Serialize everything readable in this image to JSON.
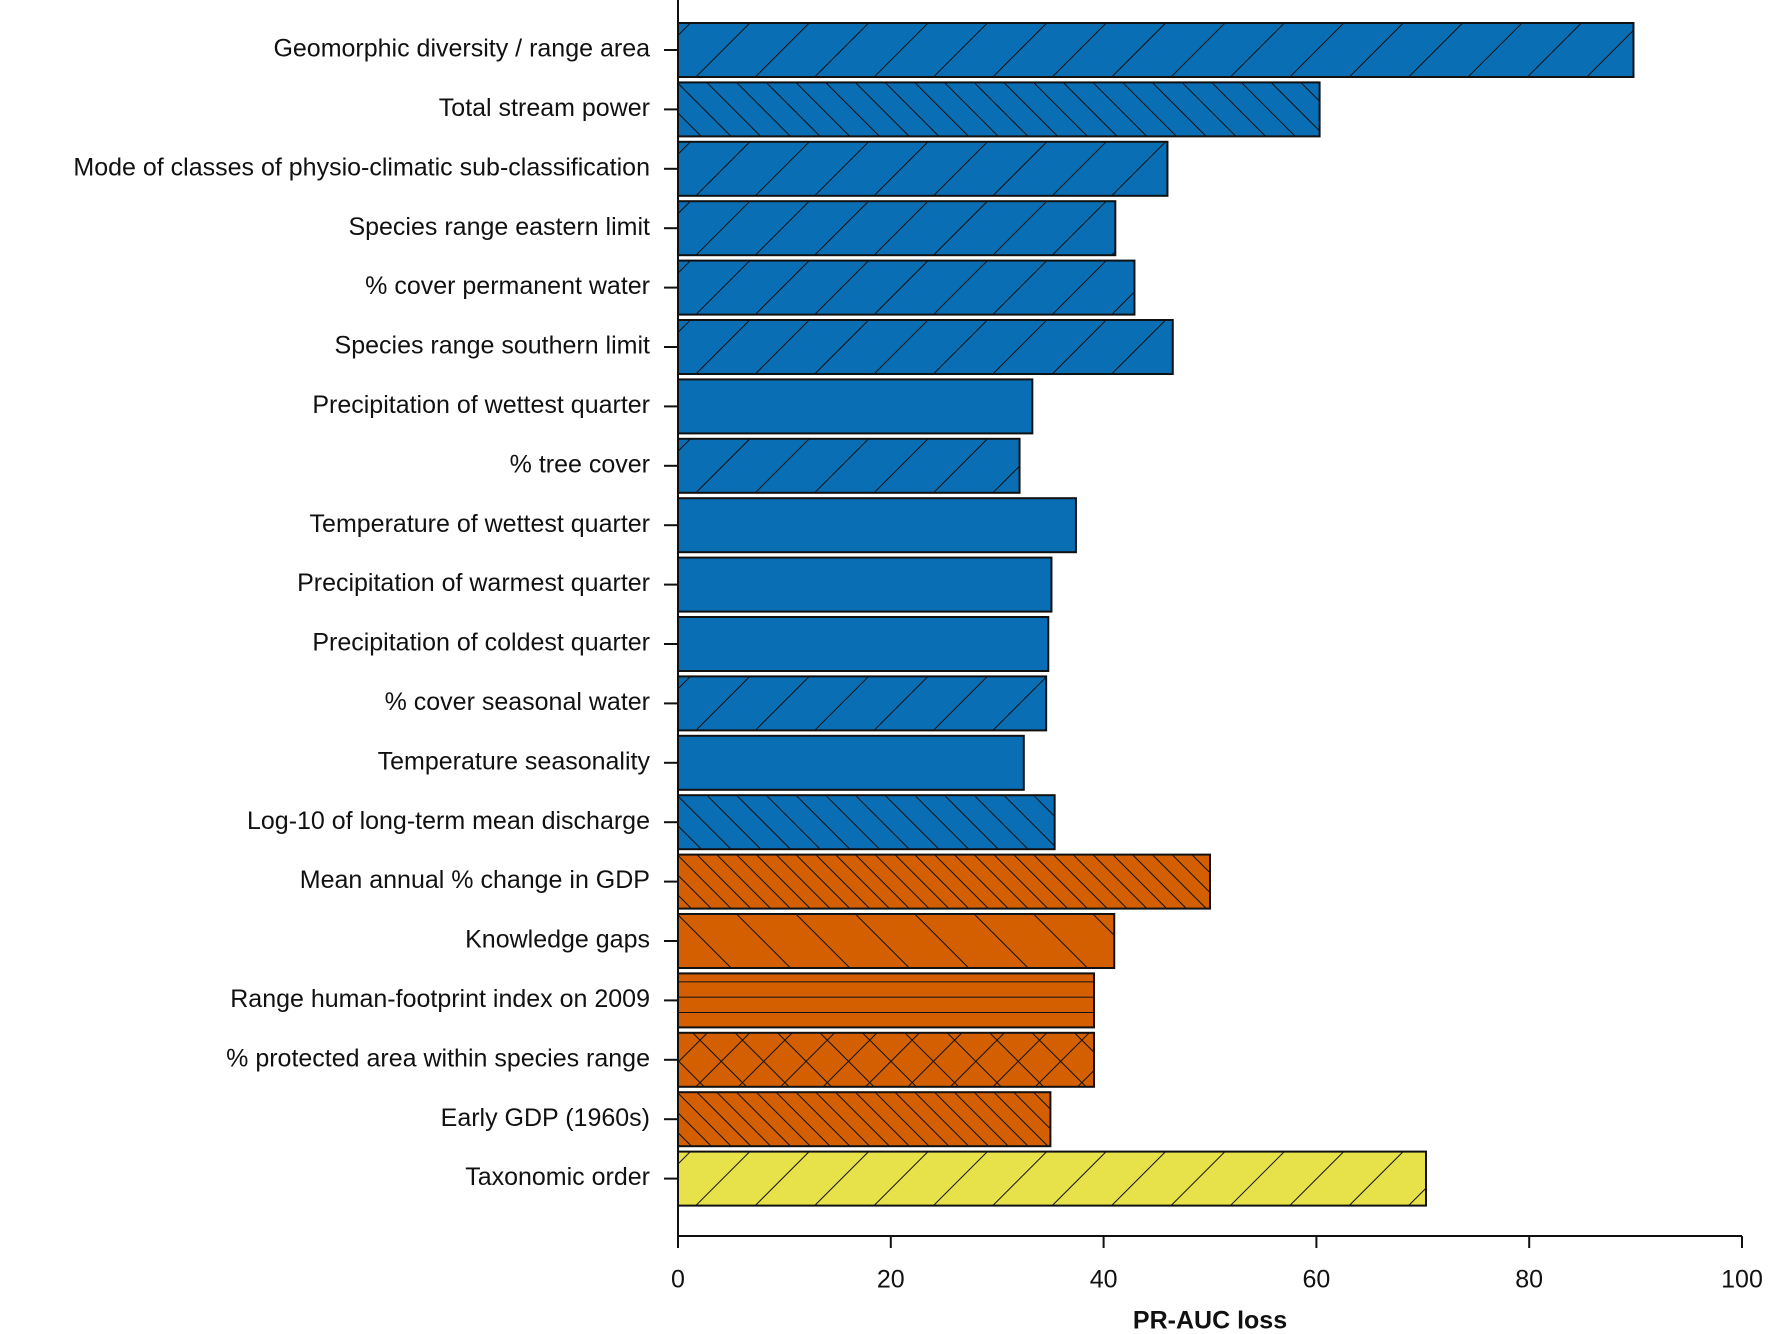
{
  "chart_data": {
    "type": "barh",
    "categories": [
      "Geomorphic diversity / range area",
      "Total stream power",
      "Mode of classes of physio-climatic sub-classification",
      "Species range eastern limit",
      "% cover permanent water",
      "Species range southern limit",
      "Precipitation of wettest quarter",
      "% tree cover",
      "Temperature of wettest quarter",
      "Precipitation of warmest quarter",
      "Precipitation of coldest quarter",
      "% cover seasonal water",
      "Temperature seasonality",
      "Log-10 of long-term mean discharge",
      "Mean annual % change in GDP",
      "Knowledge gaps",
      "Range human-footprint index on 2009",
      "% protected area within species range",
      "Early GDP (1960s)",
      "Taxonomic order"
    ],
    "values": [
      89.8,
      60.3,
      46.0,
      41.1,
      42.9,
      46.5,
      33.3,
      32.1,
      37.4,
      35.1,
      34.8,
      34.6,
      32.5,
      35.4,
      50.0,
      41.0,
      39.1,
      39.1,
      35.0,
      70.3
    ],
    "colors": [
      "#0a6eb4",
      "#0a6eb4",
      "#0a6eb4",
      "#0a6eb4",
      "#0a6eb4",
      "#0a6eb4",
      "#0a6eb4",
      "#0a6eb4",
      "#0a6eb4",
      "#0a6eb4",
      "#0a6eb4",
      "#0a6eb4",
      "#0a6eb4",
      "#0a6eb4",
      "#d35f00",
      "#d35f00",
      "#d35f00",
      "#d35f00",
      "#d35f00",
      "#e8e24a"
    ],
    "hatches": [
      "/",
      "\\\\",
      "/",
      "/",
      "/",
      "/",
      "",
      "/",
      "",
      "",
      "",
      "/",
      "",
      "\\\\",
      "\\\\\\",
      "\\",
      "---",
      "x",
      "\\\\\\",
      "/"
    ],
    "xlabel": "PR-AUC loss",
    "xlim": [
      0,
      100
    ],
    "xticks": [
      0,
      20,
      40,
      60,
      80,
      100
    ]
  }
}
